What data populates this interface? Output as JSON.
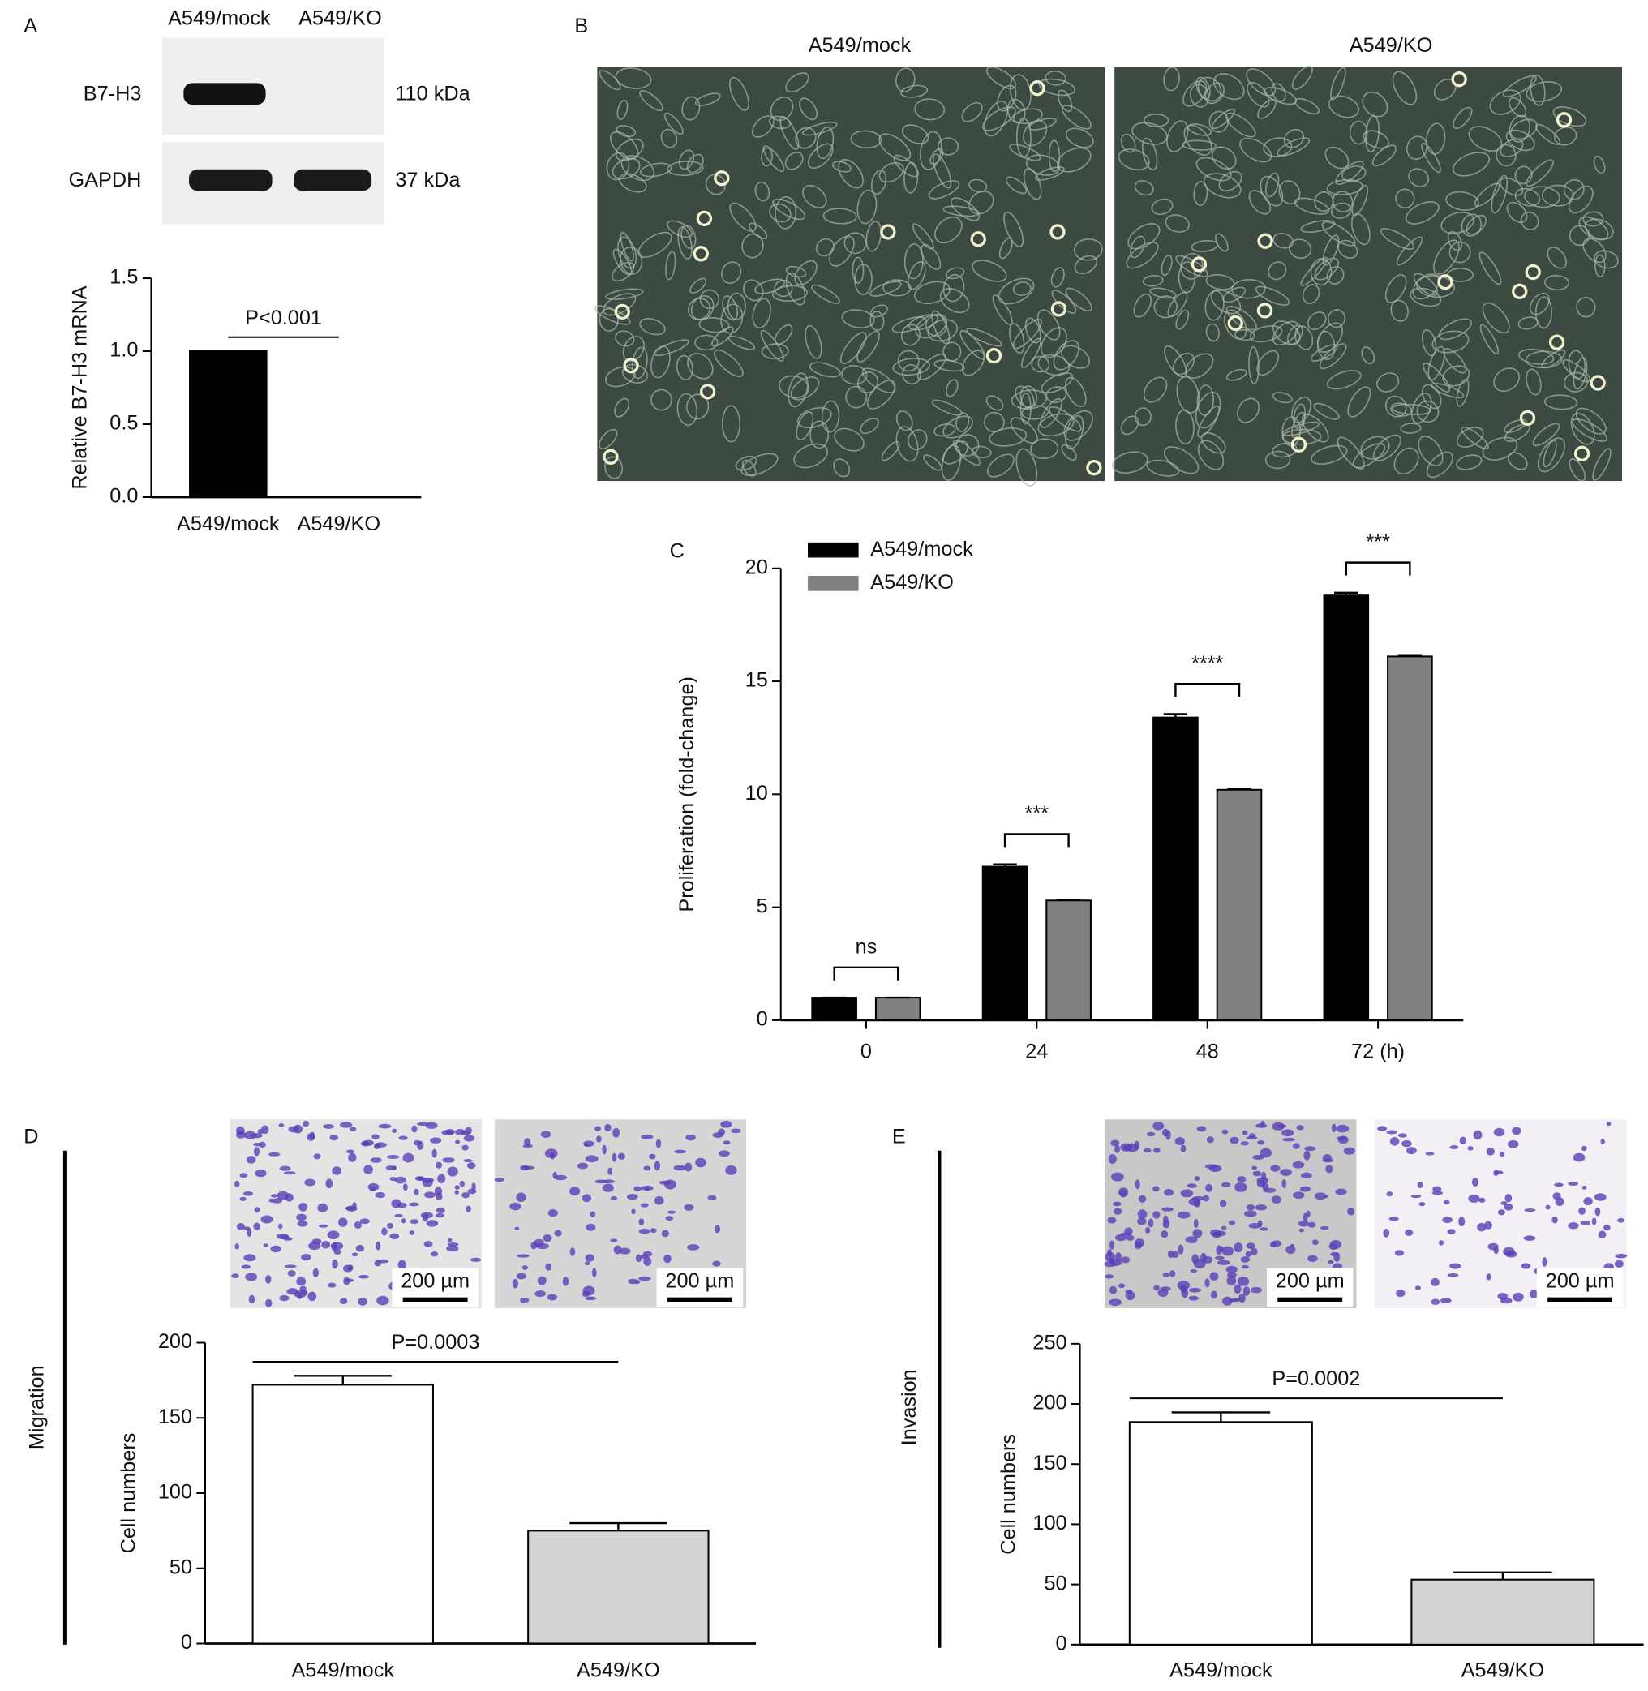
{
  "panels": [
    "A",
    "B",
    "C",
    "D",
    "E"
  ],
  "blot": {
    "columns": [
      "A549/mock",
      "A549/KO"
    ],
    "rows": [
      {
        "name": "B7-H3",
        "size": "110 kDa"
      },
      {
        "name": "GAPDH",
        "size": "37 kDa"
      }
    ]
  },
  "micrographs": [
    "A549/mock",
    "A549/KO"
  ],
  "scale_bars": [
    "200 µm",
    "200 µm",
    "200 µm",
    "200 µm"
  ],
  "chart_data": [
    {
      "type": "bar",
      "ylabel": "Relative B7-H3 mRNA",
      "categories": [
        "A549/mock",
        "A549/KO"
      ],
      "values": [
        1.0,
        0.0
      ],
      "color": "#000000",
      "annotation": "P<0.001",
      "ylim": [
        0,
        1.5
      ],
      "yticks": [
        {
          "value": 0,
          "label": "0.0"
        },
        {
          "value": 0.5,
          "label": "0.5"
        },
        {
          "value": 1,
          "label": "1.0"
        },
        {
          "value": 1.5,
          "label": "1.5"
        }
      ]
    },
    {
      "type": "bar",
      "ylabel": "Proliferation (fold-change)",
      "categories": [
        "0",
        "24",
        "48",
        "72 (h)"
      ],
      "series": [
        {
          "name": "A549/mock",
          "color": "#000000",
          "values": [
            1.0,
            6.8,
            13.4,
            18.8
          ],
          "errors": [
            0,
            0.1,
            0.15,
            0.12
          ]
        },
        {
          "name": "A549/KO",
          "color": "#808080",
          "values": [
            1.0,
            5.3,
            10.2,
            16.1
          ],
          "errors": [
            0,
            0.03,
            0.03,
            0.06
          ]
        }
      ],
      "annotations": [
        "ns",
        "***",
        "****",
        "***"
      ],
      "ylim": [
        0,
        20
      ],
      "yticks": [
        0,
        5,
        10,
        15,
        20
      ]
    },
    {
      "type": "bar",
      "side_label": "Migration",
      "ylabel": "Cell numbers",
      "categories": [
        "A549/mock",
        "A549/KO"
      ],
      "values": [
        172,
        75
      ],
      "errors": [
        6,
        5
      ],
      "colors": [
        "#ffffff",
        "#d3d3d3"
      ],
      "annotation": "P=0.0003",
      "ylim": [
        0,
        200
      ],
      "yticks": [
        0,
        50,
        100,
        150,
        200
      ]
    },
    {
      "type": "bar",
      "side_label": "Invasion",
      "ylabel": "Cell numbers",
      "categories": [
        "A549/mock",
        "A549/KO"
      ],
      "values": [
        185,
        54
      ],
      "errors": [
        8,
        6
      ],
      "colors": [
        "#ffffff",
        "#d3d3d3"
      ],
      "annotation": "P=0.0002",
      "ylim": [
        0,
        250
      ],
      "yticks": [
        0,
        50,
        100,
        150,
        200,
        250
      ]
    }
  ]
}
